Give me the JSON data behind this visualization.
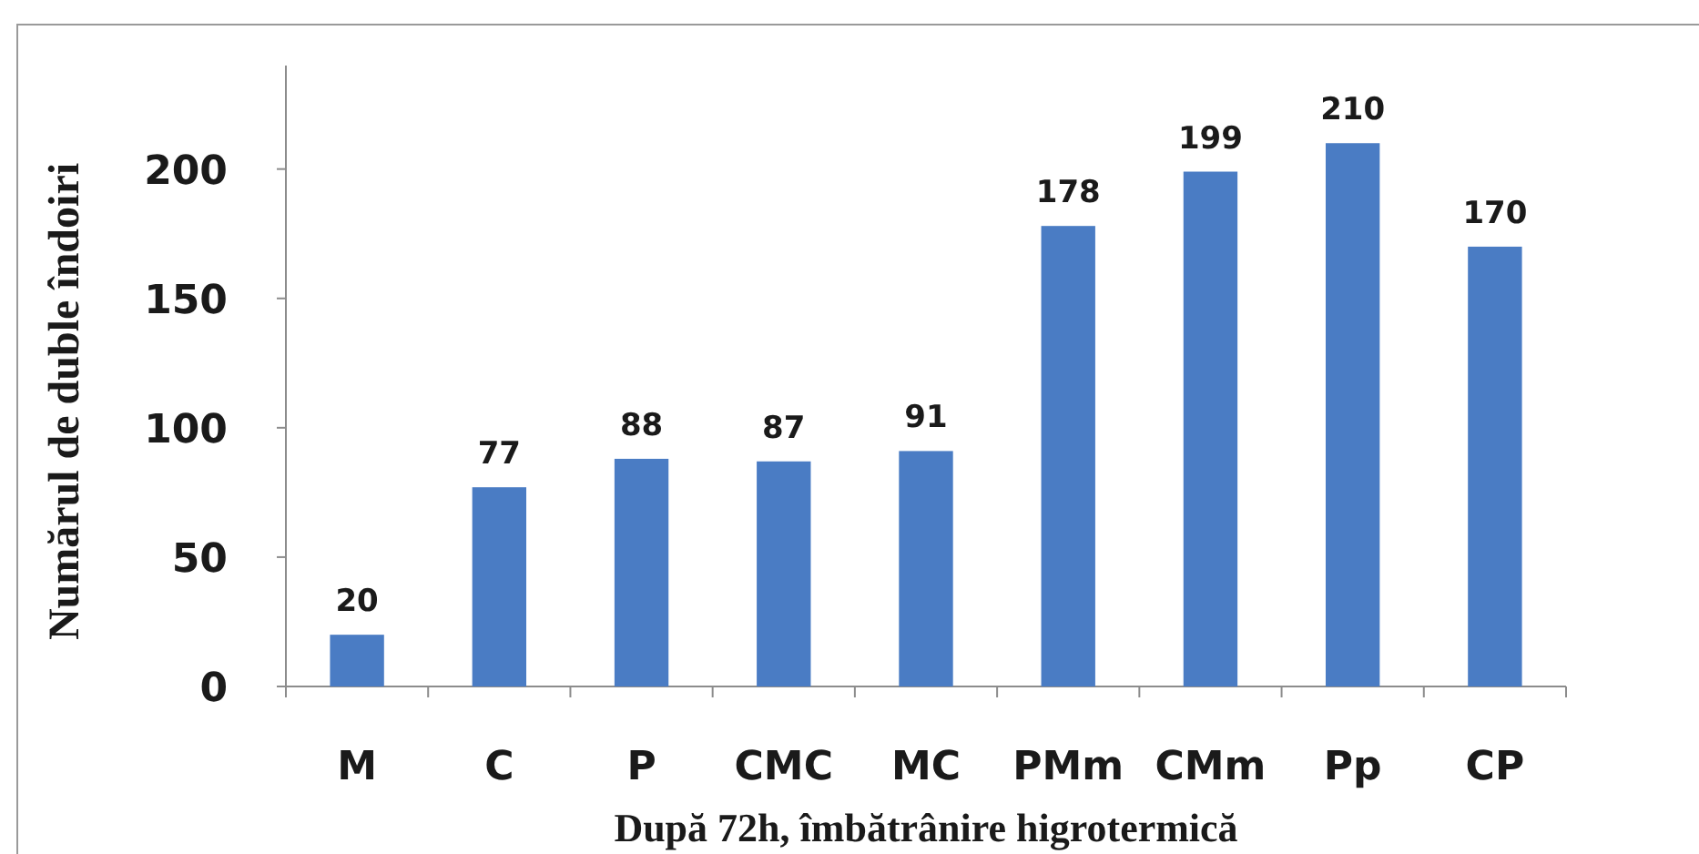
{
  "chart_data": {
    "type": "bar",
    "xlabel": "După 72h, îmbătrânire higrotermică",
    "ylabel": "Numărul de duble îndoiri",
    "categories": [
      "M",
      "C",
      "P",
      "CMC",
      "MC",
      "PMm",
      "CMm",
      "Pp",
      "CP"
    ],
    "values": [
      20,
      77,
      88,
      87,
      91,
      178,
      199,
      210,
      170
    ],
    "color": "#4a7cc4",
    "ylim": [
      0,
      240
    ],
    "yticks": [
      0,
      50,
      100,
      150,
      200
    ],
    "data_labels": true
  }
}
